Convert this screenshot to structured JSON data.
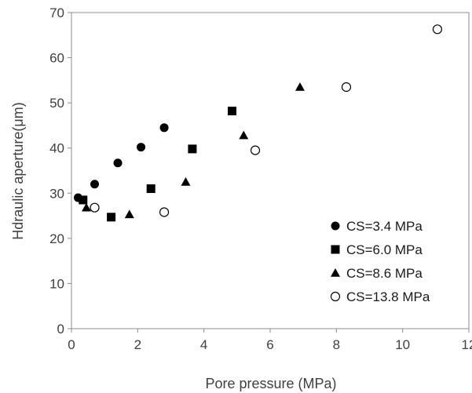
{
  "chart_data": {
    "type": "scatter",
    "title": "",
    "xlabel": "Pore pressure (MPa)",
    "ylabel": "Hdraulic aperture(μm)",
    "xlim": [
      0,
      12
    ],
    "ylim": [
      0,
      70
    ],
    "xticks": [
      0,
      2,
      4,
      6,
      8,
      10,
      12
    ],
    "yticks": [
      0,
      10,
      20,
      30,
      40,
      50,
      60,
      70
    ],
    "grid": false,
    "legend_position": "bottom-right",
    "series": [
      {
        "name": "CS=3.4 MPa",
        "marker": "circle-filled",
        "color": "#000000",
        "points": [
          [
            0.2,
            29.0
          ],
          [
            0.7,
            32.0
          ],
          [
            1.4,
            36.7
          ],
          [
            2.1,
            40.2
          ],
          [
            2.8,
            44.5
          ]
        ]
      },
      {
        "name": "CS=6.0 MPa",
        "marker": "square-filled",
        "color": "#000000",
        "points": [
          [
            0.35,
            28.5
          ],
          [
            1.2,
            24.7
          ],
          [
            2.4,
            31.0
          ],
          [
            3.65,
            39.8
          ],
          [
            4.85,
            48.2
          ]
        ]
      },
      {
        "name": "CS=8.6 MPa",
        "marker": "triangle-filled",
        "color": "#000000",
        "points": [
          [
            0.45,
            26.8
          ],
          [
            1.75,
            25.3
          ],
          [
            3.45,
            32.5
          ],
          [
            5.2,
            42.8
          ],
          [
            6.9,
            53.5
          ]
        ]
      },
      {
        "name": "CS=13.8 MPa",
        "marker": "circle-open",
        "color": "#000000",
        "points": [
          [
            0.7,
            26.8
          ],
          [
            2.8,
            25.8
          ],
          [
            5.55,
            39.5
          ],
          [
            8.3,
            53.5
          ],
          [
            11.05,
            66.3
          ]
        ]
      }
    ]
  }
}
